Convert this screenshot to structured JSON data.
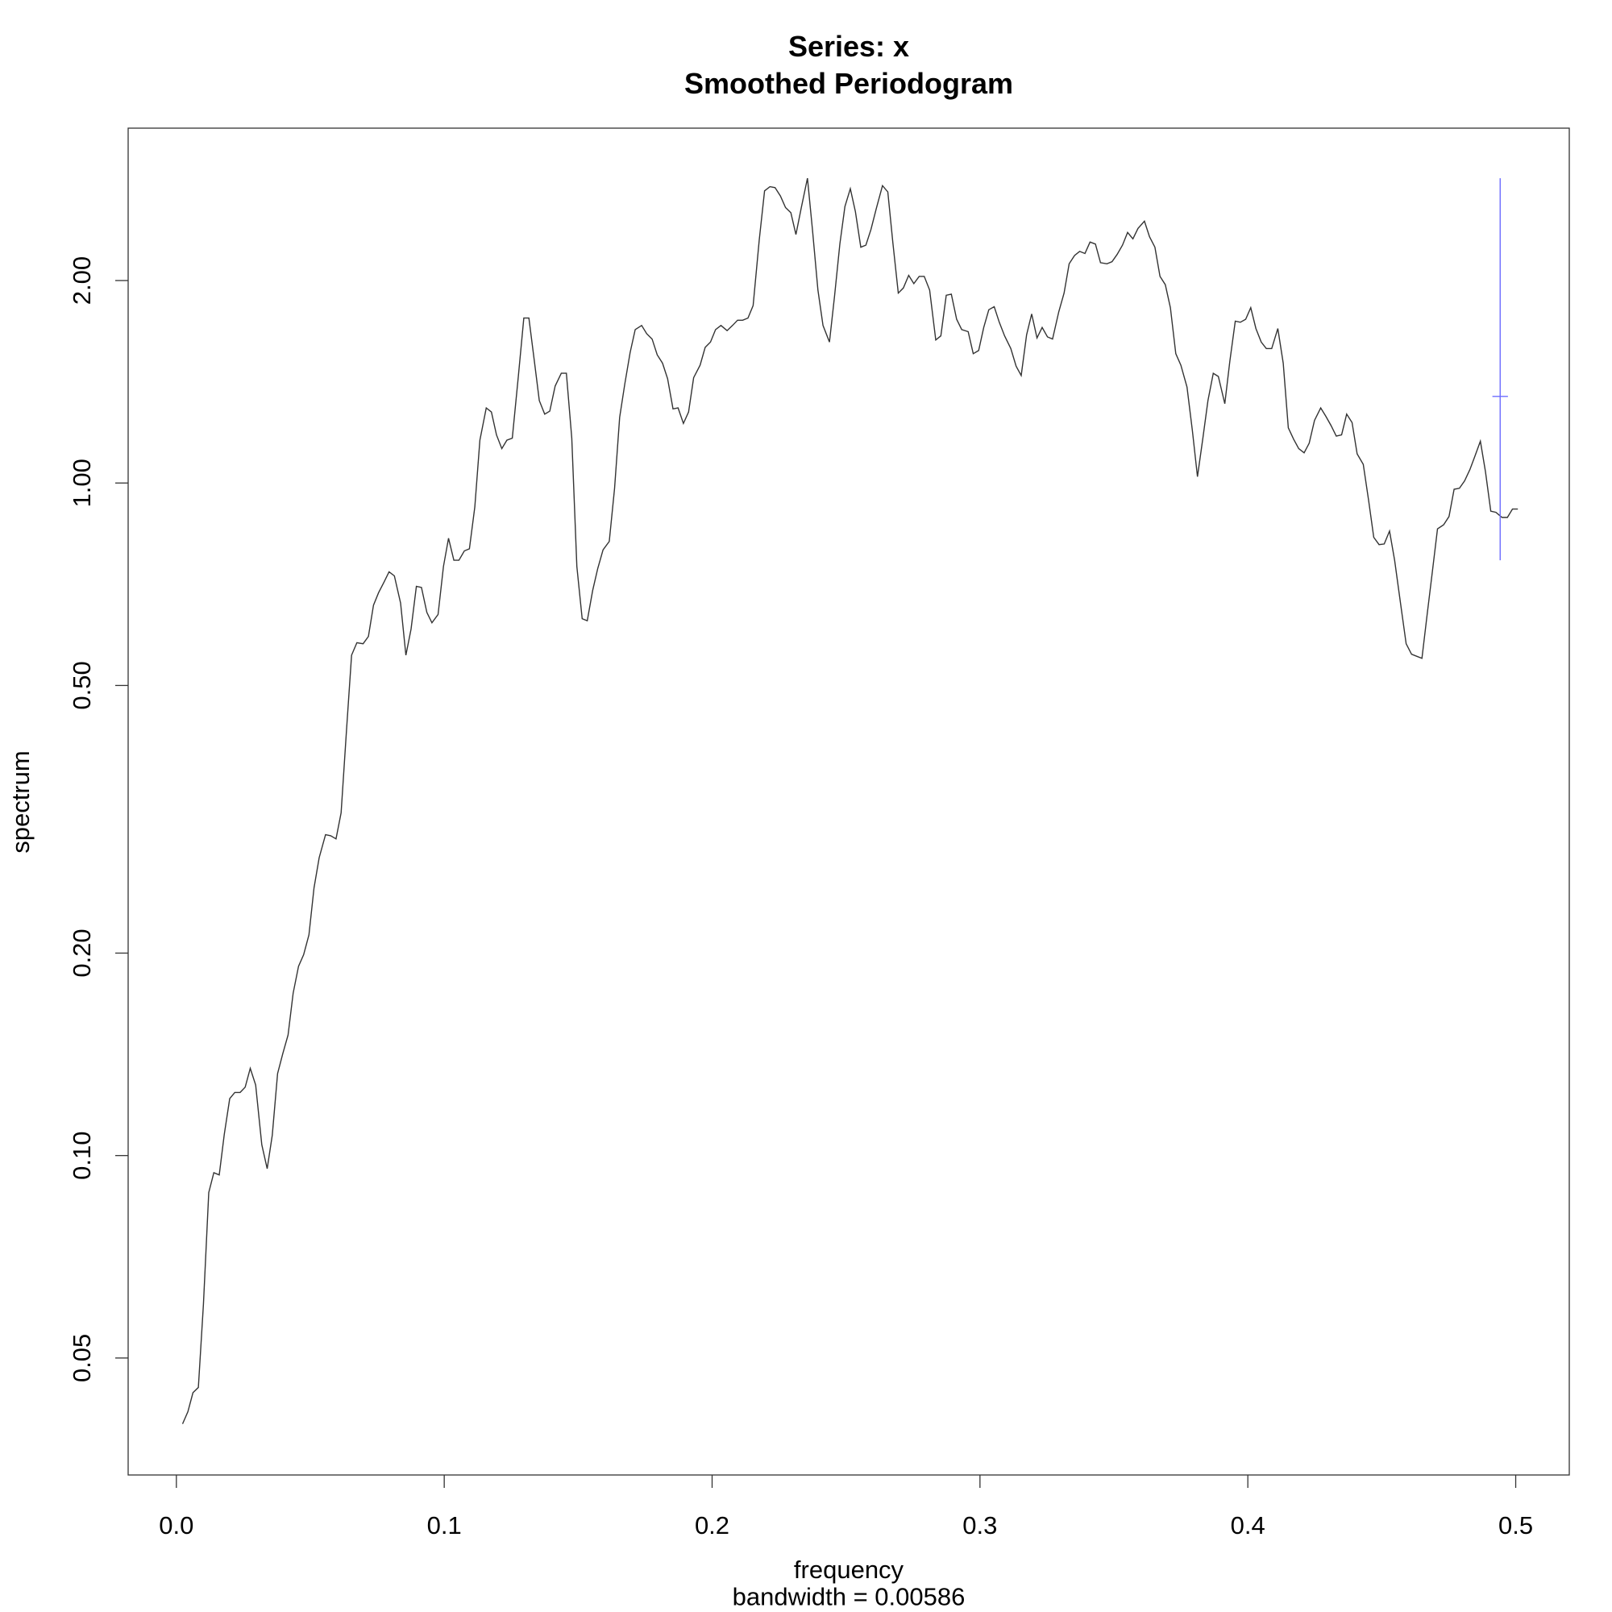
{
  "chart_data": {
    "type": "line",
    "title": "Series: x",
    "subtitle": "Smoothed Periodogram",
    "xlabel": "frequency",
    "note": "bandwidth = 0.00586",
    "ylabel": "spectrum",
    "log_y": true,
    "color": "#333333",
    "x": [
      0.0023,
      0.0043,
      0.0062,
      0.0082,
      0.0101,
      0.0121,
      0.014,
      0.016,
      0.0179,
      0.0199,
      0.0218,
      0.0238,
      0.0257,
      0.0276,
      0.0296,
      0.0319,
      0.0339,
      0.0358,
      0.0378,
      0.0397,
      0.0417,
      0.0436,
      0.0456,
      0.0475,
      0.0495,
      0.0514,
      0.0533,
      0.0557,
      0.0576,
      0.0596,
      0.0615,
      0.0635,
      0.0654,
      0.0674,
      0.0697,
      0.0717,
      0.0736,
      0.0755,
      0.0775,
      0.0794,
      0.0814,
      0.0837,
      0.0857,
      0.0876,
      0.0896,
      0.0915,
      0.0935,
      0.0954,
      0.0977,
      0.0997,
      0.1016,
      0.1036,
      0.1055,
      0.1075,
      0.1094,
      0.1114,
      0.1133,
      0.1157,
      0.1176,
      0.1195,
      0.1215,
      0.1234,
      0.1254,
      0.1277,
      0.1297,
      0.1316,
      0.1336,
      0.1355,
      0.1375,
      0.1394,
      0.1414,
      0.1437,
      0.1456,
      0.1476,
      0.1495,
      0.1515,
      0.1534,
      0.1554,
      0.1573,
      0.1593,
      0.1616,
      0.1636,
      0.1655,
      0.1674,
      0.1694,
      0.1713,
      0.1737,
      0.1756,
      0.1776,
      0.1795,
      0.1815,
      0.1834,
      0.1854,
      0.1873,
      0.1893,
      0.1912,
      0.1931,
      0.1955,
      0.1974,
      0.1994,
      0.2013,
      0.2033,
      0.2056,
      0.2076,
      0.2095,
      0.2114,
      0.2134,
      0.2153,
      0.2176,
      0.2196,
      0.2216,
      0.2235,
      0.2255,
      0.2274,
      0.2294,
      0.2313,
      0.2333,
      0.2356,
      0.2375,
      0.2395,
      0.2414,
      0.2438,
      0.2457,
      0.2477,
      0.2496,
      0.2516,
      0.2535,
      0.2555,
      0.2574,
      0.2593,
      0.2613,
      0.2636,
      0.2656,
      0.2675,
      0.2695,
      0.2714,
      0.2734,
      0.2753,
      0.2773,
      0.2792,
      0.2812,
      0.2835,
      0.2854,
      0.2874,
      0.2893,
      0.2913,
      0.2932,
      0.2956,
      0.2975,
      0.2995,
      0.3014,
      0.3033,
      0.3053,
      0.3072,
      0.3092,
      0.3115,
      0.3135,
      0.3154,
      0.3174,
      0.3193,
      0.3213,
      0.3232,
      0.3252,
      0.3271,
      0.3294,
      0.3314,
      0.3333,
      0.3353,
      0.3372,
      0.3392,
      0.3411,
      0.3431,
      0.345,
      0.3474,
      0.3493,
      0.3512,
      0.3532,
      0.3551,
      0.3571,
      0.359,
      0.3614,
      0.3633,
      0.3653,
      0.3672,
      0.3692,
      0.3711,
      0.3731,
      0.375,
      0.3773,
      0.3793,
      0.3812,
      0.3832,
      0.3851,
      0.3871,
      0.389,
      0.3914,
      0.3933,
      0.3953,
      0.3972,
      0.3992,
      0.4011,
      0.403,
      0.405,
      0.4069,
      0.4089,
      0.4112,
      0.4132,
      0.4151,
      0.4171,
      0.419,
      0.421,
      0.4229,
      0.4249,
      0.4272,
      0.4291,
      0.4311,
      0.433,
      0.435,
      0.4369,
      0.4389,
      0.4408,
      0.4431,
      0.4451,
      0.447,
      0.449,
      0.4509,
      0.4529,
      0.4548,
      0.4572,
      0.4591,
      0.4611,
      0.463,
      0.465,
      0.4669,
      0.4688,
      0.4708,
      0.4731,
      0.4751,
      0.477,
      0.479,
      0.4809,
      0.4829,
      0.4848,
      0.4868,
      0.4887,
      0.4907,
      0.4926,
      0.4949,
      0.4969,
      0.4988,
      0.5008
    ],
    "values": [
      0.0399,
      0.0416,
      0.0444,
      0.0452,
      0.0601,
      0.0881,
      0.0943,
      0.0936,
      0.1076,
      0.1215,
      0.1241,
      0.1241,
      0.1264,
      0.1348,
      0.1273,
      0.1038,
      0.0956,
      0.1072,
      0.1324,
      0.1417,
      0.1511,
      0.1743,
      0.1912,
      0.1989,
      0.2129,
      0.25,
      0.2773,
      0.3,
      0.2989,
      0.2957,
      0.3233,
      0.4288,
      0.5546,
      0.5789,
      0.5768,
      0.5914,
      0.6583,
      0.6871,
      0.7121,
      0.738,
      0.7276,
      0.663,
      0.5546,
      0.6064,
      0.702,
      0.6994,
      0.6421,
      0.6196,
      0.6375,
      0.7514,
      0.8276,
      0.7677,
      0.7677,
      0.7926,
      0.7983,
      0.9211,
      1.158,
      1.293,
      1.275,
      1.179,
      1.125,
      1.158,
      1.166,
      1.445,
      1.759,
      1.759,
      1.524,
      1.326,
      1.266,
      1.279,
      1.394,
      1.456,
      1.456,
      1.166,
      0.7514,
      0.6285,
      0.624,
      0.692,
      0.7461,
      0.7955,
      0.8185,
      0.9822,
      1.252,
      1.404,
      1.563,
      1.691,
      1.715,
      1.667,
      1.637,
      1.551,
      1.507,
      1.429,
      1.289,
      1.293,
      1.226,
      1.275,
      1.434,
      1.497,
      1.591,
      1.62,
      1.691,
      1.715,
      1.685,
      1.715,
      1.746,
      1.746,
      1.759,
      1.836,
      2.299,
      2.719,
      2.758,
      2.749,
      2.671,
      2.568,
      2.523,
      2.341,
      2.568,
      2.839,
      2.375,
      1.936,
      1.715,
      1.62,
      1.895,
      2.266,
      2.577,
      2.739,
      2.532,
      2.242,
      2.258,
      2.382,
      2.559,
      2.768,
      2.709,
      2.275,
      1.916,
      1.95,
      2.036,
      1.979,
      2.029,
      2.029,
      1.936,
      1.632,
      1.655,
      1.902,
      1.909,
      1.752,
      1.691,
      1.679,
      1.557,
      1.574,
      1.703,
      1.81,
      1.829,
      1.734,
      1.655,
      1.585,
      1.492,
      1.445,
      1.661,
      1.784,
      1.643,
      1.703,
      1.649,
      1.637,
      1.797,
      1.916,
      2.118,
      2.179,
      2.21,
      2.194,
      2.282,
      2.266,
      2.126,
      2.118,
      2.133,
      2.187,
      2.258,
      2.358,
      2.307,
      2.391,
      2.451,
      2.324,
      2.242,
      2.029,
      1.972,
      1.823,
      1.557,
      1.497,
      1.389,
      1.196,
      1.022,
      1.166,
      1.326,
      1.456,
      1.44,
      1.312,
      1.519,
      1.74,
      1.734,
      1.752,
      1.823,
      1.697,
      1.62,
      1.585,
      1.585,
      1.697,
      1.507,
      1.208,
      1.162,
      1.125,
      1.109,
      1.146,
      1.239,
      1.293,
      1.257,
      1.217,
      1.174,
      1.179,
      1.266,
      1.23,
      1.105,
      1.066,
      0.941,
      0.8304,
      0.8098,
      0.8117,
      0.8483,
      0.7677,
      0.6535,
      0.5768,
      0.5565,
      0.5526,
      0.5486,
      0.6352,
      0.7328,
      0.8545,
      0.8667,
      0.8918,
      0.9788,
      0.9822,
      1.007,
      1.047,
      1.097,
      1.154,
      1.04,
      0.9081,
      0.9047,
      0.8888,
      0.8888,
      0.9146,
      0.9146
    ],
    "ci_bar": {
      "x": 0.4942,
      "center": 1.345,
      "lower": 0.7677,
      "upper": 2.839,
      "width": 0.0058,
      "color": "#6b6bff"
    },
    "xlim": [
      -0.018,
      0.52
    ],
    "ylim": [
      0.0335,
      3.37
    ],
    "xticks": [
      {
        "value": 0,
        "label": "0.0"
      },
      0.1,
      0.2,
      0.3,
      0.4,
      0.5
    ],
    "yticks": [
      0.05,
      {
        "value": 0.1,
        "label": "0.10"
      },
      {
        "value": 0.2,
        "label": "0.20"
      },
      {
        "value": 0.5,
        "label": "0.50"
      },
      {
        "value": 1,
        "label": "1.00"
      },
      {
        "value": 2,
        "label": "2.00"
      }
    ]
  }
}
